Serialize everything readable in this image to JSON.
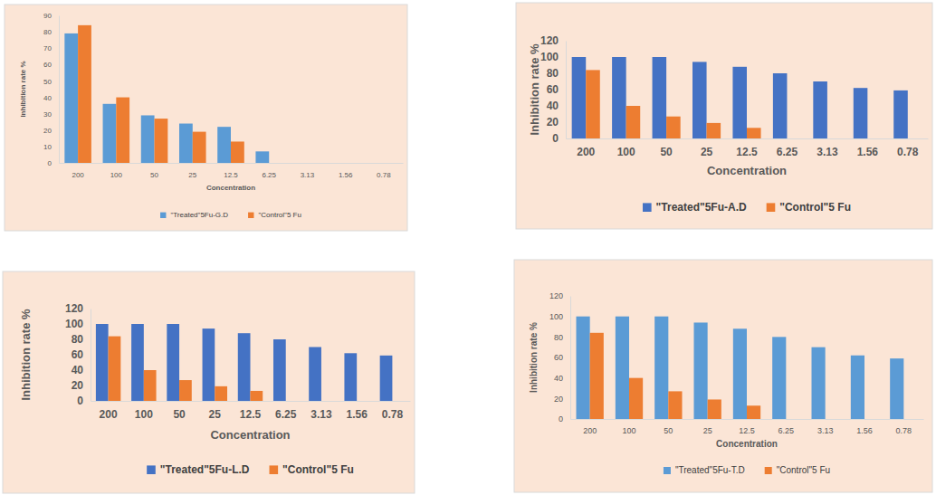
{
  "chart_data": [
    {
      "type": "bar",
      "x_label": "Concentration",
      "y_label": "Inhibition rate %",
      "categories": [
        "200",
        "100",
        "50",
        "25",
        "12.5",
        "6.25",
        "3.13",
        "1.56",
        "0.78"
      ],
      "series": [
        {
          "name": "\"Treated\"5Fu-G.D",
          "color": "#5b9bd5",
          "values": [
            79,
            36,
            29,
            24,
            22,
            7,
            0,
            0,
            0
          ]
        },
        {
          "name": "\"Control\"5 Fu",
          "color": "#ed7d31",
          "values": [
            84,
            40,
            27,
            19,
            13,
            0,
            0,
            0,
            0
          ]
        }
      ],
      "ylim": [
        0,
        90
      ],
      "yticks": [
        0,
        10,
        20,
        30,
        40,
        50,
        60,
        70,
        80,
        90
      ],
      "legend": "bottom"
    },
    {
      "type": "bar",
      "x_label": "Concentration",
      "y_label": "Inhibition rate %",
      "categories": [
        "200",
        "100",
        "50",
        "25",
        "12.5",
        "6.25",
        "3.13",
        "1.56",
        "0.78"
      ],
      "series": [
        {
          "name": "\"Treated\"5Fu-A.D",
          "color": "#4472c4",
          "values": [
            100,
            100,
            100,
            94,
            88,
            80,
            70,
            62,
            59
          ]
        },
        {
          "name": "\"Control\"5 Fu",
          "color": "#ed7d31",
          "values": [
            84,
            40,
            27,
            19,
            13,
            0,
            0,
            0,
            0
          ]
        }
      ],
      "ylim": [
        0,
        120
      ],
      "yticks": [
        0,
        20,
        40,
        60,
        80,
        100,
        120
      ],
      "legend": "bottom"
    },
    {
      "type": "bar",
      "x_label": "Concentration",
      "y_label": "Inhibition rate %",
      "categories": [
        "200",
        "100",
        "50",
        "25",
        "12.5",
        "6.25",
        "3.13",
        "1.56",
        "0.78"
      ],
      "series": [
        {
          "name": "\"Treated\"5Fu-L.D",
          "color": "#4472c4",
          "values": [
            100,
            100,
            100,
            94,
            88,
            80,
            70,
            62,
            59
          ]
        },
        {
          "name": "\"Control\"5 Fu",
          "color": "#ed7d31",
          "values": [
            84,
            40,
            27,
            19,
            13,
            0,
            0,
            0,
            0
          ]
        }
      ],
      "ylim": [
        0,
        120
      ],
      "yticks": [
        0,
        20,
        40,
        60,
        80,
        100,
        120
      ],
      "legend": "bottom"
    },
    {
      "type": "bar",
      "x_label": "Concentration",
      "y_label": "Inhibition rate %",
      "categories": [
        "200",
        "100",
        "50",
        "25",
        "12.5",
        "6.25",
        "3.13",
        "1.56",
        "0.78"
      ],
      "series": [
        {
          "name": "\"Treated\"5Fu-T.D",
          "color": "#5b9bd5",
          "values": [
            100,
            100,
            100,
            94,
            88,
            80,
            70,
            62,
            59
          ]
        },
        {
          "name": "\"Control\"5 Fu",
          "color": "#ed7d31",
          "values": [
            84,
            40,
            27,
            19,
            13,
            0,
            0,
            0,
            0
          ]
        }
      ],
      "ylim": [
        0,
        120
      ],
      "yticks": [
        0,
        20,
        40,
        60,
        80,
        100,
        120
      ],
      "legend": "bottom"
    }
  ]
}
